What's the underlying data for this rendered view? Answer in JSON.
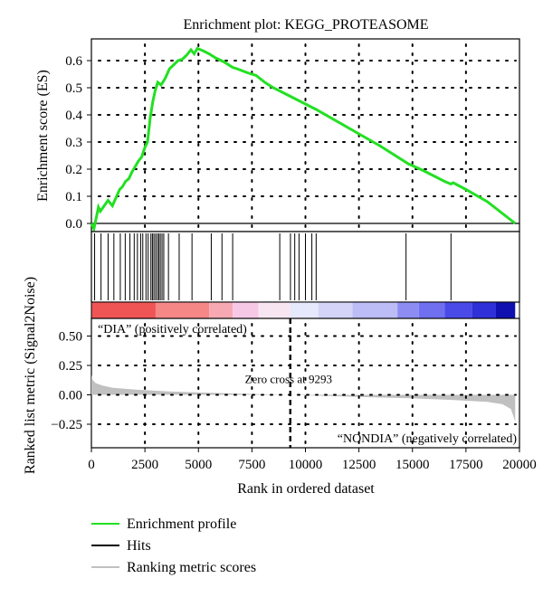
{
  "chart_data": {
    "type": "line",
    "title": "Enrichment plot: KEGG_PROTEASOME",
    "xlabel": "Rank in ordered dataset",
    "xlim": [
      0,
      20000
    ],
    "x_ticks": [
      "0",
      "2500",
      "5000",
      "7500",
      "10000",
      "12500",
      "15000",
      "17500",
      "20000"
    ],
    "x_tick_values": [
      0,
      2500,
      5000,
      7500,
      10000,
      12500,
      15000,
      17500,
      20000
    ],
    "grid": true,
    "es_panel": {
      "ylabel": "Enrichment score (ES)",
      "ylim": [
        -0.03,
        0.68
      ],
      "y_ticks": [
        "0.0",
        "0.1",
        "0.2",
        "0.3",
        "0.4",
        "0.5",
        "0.6"
      ],
      "y_tick_values": [
        0.0,
        0.1,
        0.2,
        0.3,
        0.4,
        0.5,
        0.6
      ],
      "series": [
        {
          "color": "#22e022",
          "x": [
            0,
            120,
            330,
            420,
            780,
            980,
            1150,
            1320,
            1450,
            1600,
            1750,
            1900,
            2050,
            2200,
            2350,
            2500,
            2620,
            2750,
            2870,
            2980,
            3100,
            3250,
            3450,
            3650,
            3850,
            4050,
            4250,
            4450,
            4650,
            4800,
            4950,
            5100,
            5250,
            5500,
            5800,
            6200,
            6600,
            6800,
            7300,
            7700,
            8100,
            8500,
            9000,
            9500,
            10000,
            10500,
            11500,
            12500,
            13500,
            14500,
            14800,
            15500,
            16500,
            16800,
            16900,
            17500,
            18500,
            19800
          ],
          "y": [
            0.0,
            -0.02,
            0.06,
            0.045,
            0.085,
            0.065,
            0.095,
            0.125,
            0.135,
            0.155,
            0.165,
            0.19,
            0.21,
            0.23,
            0.245,
            0.28,
            0.3,
            0.39,
            0.45,
            0.49,
            0.52,
            0.51,
            0.535,
            0.57,
            0.585,
            0.6,
            0.605,
            0.62,
            0.64,
            0.625,
            0.645,
            0.64,
            0.635,
            0.625,
            0.61,
            0.595,
            0.575,
            0.57,
            0.555,
            0.545,
            0.52,
            0.5,
            0.48,
            0.46,
            0.44,
            0.42,
            0.375,
            0.33,
            0.285,
            0.235,
            0.22,
            0.195,
            0.155,
            0.145,
            0.15,
            0.125,
            0.08,
            0.0
          ]
        }
      ],
      "hits": [
        150,
        450,
        780,
        1050,
        1350,
        1580,
        1800,
        2000,
        2150,
        2300,
        2400,
        2550,
        2650,
        2780,
        2850,
        2920,
        3000,
        3080,
        3150,
        3220,
        3300,
        3380,
        3600,
        4100,
        4700,
        5600,
        6100,
        6600,
        8800,
        9300,
        9500,
        9700,
        10000,
        10300,
        10500,
        14700,
        16800
      ]
    },
    "ranking_bar": {
      "segments": [
        {
          "x0": 0,
          "x1": 3000,
          "color": "#f05555"
        },
        {
          "x0": 3000,
          "x1": 5500,
          "color": "#f58787"
        },
        {
          "x0": 5500,
          "x1": 6600,
          "color": "#f7a9b3"
        },
        {
          "x0": 6600,
          "x1": 7800,
          "color": "#f7c8e6"
        },
        {
          "x0": 7800,
          "x1": 9300,
          "color": "#f7e6f2"
        },
        {
          "x0": 9300,
          "x1": 10600,
          "color": "#e6e8fb"
        },
        {
          "x0": 10600,
          "x1": 12200,
          "color": "#d4d4f8"
        },
        {
          "x0": 12200,
          "x1": 14300,
          "color": "#bcbcf6"
        },
        {
          "x0": 14300,
          "x1": 15300,
          "color": "#8c8cf2"
        },
        {
          "x0": 15300,
          "x1": 16500,
          "color": "#6f6ff0"
        },
        {
          "x0": 16500,
          "x1": 17800,
          "color": "#4a4ae8"
        },
        {
          "x0": 17800,
          "x1": 18900,
          "color": "#3030d8"
        },
        {
          "x0": 18900,
          "x1": 19800,
          "color": "#1010b0"
        }
      ]
    },
    "metric_panel": {
      "ylabel": "Ranked list metric (Signal2Noise)",
      "ylim": [
        -0.45,
        0.65
      ],
      "y_ticks": [
        "0.50",
        "0.25",
        "0.00",
        "−0.25"
      ],
      "y_tick_values": [
        0.5,
        0.25,
        0.0,
        -0.25
      ],
      "fill_color": "#c0c0c0",
      "x": [
        0,
        50,
        200,
        500,
        1000,
        2000,
        3500,
        5000,
        7000,
        9293,
        11000,
        13000,
        15000,
        16500,
        17500,
        18500,
        19200,
        19600,
        19750,
        19800
      ],
      "y": [
        0.17,
        0.13,
        0.1,
        0.08,
        0.06,
        0.045,
        0.03,
        0.02,
        0.01,
        0.0,
        -0.01,
        -0.02,
        -0.03,
        -0.04,
        -0.05,
        -0.06,
        -0.08,
        -0.12,
        -0.2,
        -0.23
      ],
      "zero_cross": 9293,
      "zero_cross_label": "Zero cross at 9293",
      "positive_label": "“DIA” (positively correlated)",
      "negative_label": "“NONDIA” (negatively correlated)",
      "positive_color": "#e03030",
      "negative_color": "#3030c8"
    },
    "legend": [
      {
        "label": "Enrichment profile",
        "color": "#22e022"
      },
      {
        "label": "Hits",
        "color": "#000000"
      },
      {
        "label": "Ranking metric scores",
        "color": "#c0c0c0"
      }
    ]
  }
}
